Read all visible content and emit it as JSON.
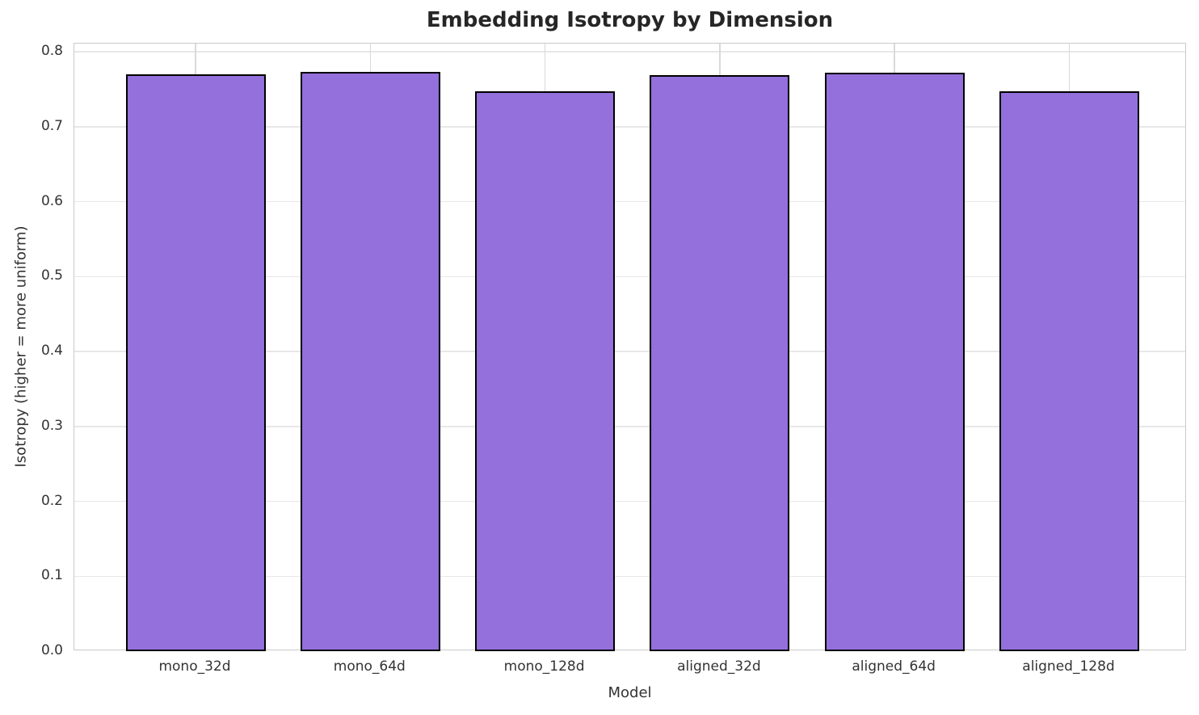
{
  "chart_data": {
    "type": "bar",
    "title": "Embedding Isotropy by Dimension",
    "xlabel": "Model",
    "ylabel": "Isotropy (higher = more uniform)",
    "categories": [
      "mono_32d",
      "mono_64d",
      "mono_128d",
      "aligned_32d",
      "aligned_64d",
      "aligned_128d"
    ],
    "values": [
      0.77,
      0.773,
      0.747,
      0.769,
      0.772,
      0.747
    ],
    "ylim": [
      0,
      0.811
    ],
    "yticks": [
      "0.0",
      "0.1",
      "0.2",
      "0.3",
      "0.4",
      "0.5",
      "0.6",
      "0.7",
      "0.8"
    ],
    "grid": "both",
    "legend_position": "none",
    "bar_color": "#9370DB",
    "bar_edge_color": "#000000"
  },
  "colors": {
    "background": "#ffffff",
    "spine": "#c9c9c9",
    "h_gridline": "#e7e7e7",
    "v_gridline": "#d9d9d9",
    "title_text": "#262626",
    "tick_text": "#333333"
  }
}
